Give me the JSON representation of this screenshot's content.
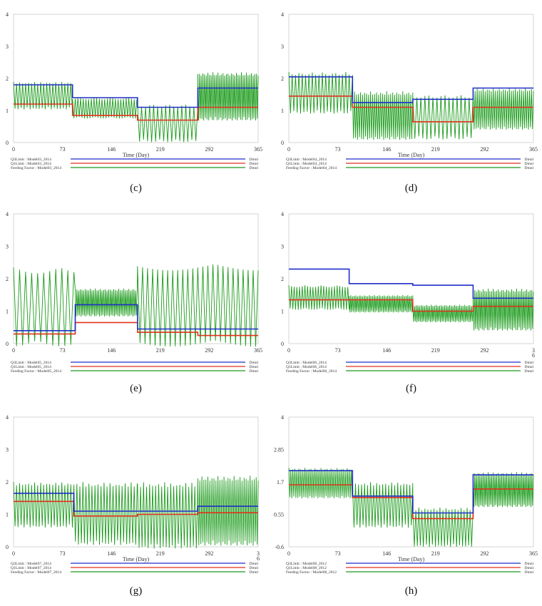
{
  "colors": {
    "blue": "#1f2fc9",
    "red": "#e0321c",
    "green": "#1a9a1a",
    "axis": "#444444"
  },
  "chart_data": [
    {
      "type": "line",
      "label": "(c)",
      "xlabel": "Time (Day)",
      "x_ticks": [
        "0",
        "73",
        "146",
        "219",
        "292",
        "365"
      ],
      "y_ticks": [
        "0",
        "1",
        "2",
        "3",
        "4"
      ],
      "xlim": [
        0,
        365
      ],
      "ylim": [
        0,
        4
      ],
      "series": [
        {
          "name": "Q3Limit : Model03_2014",
          "unit": "Dmnl",
          "color": "blue",
          "steps": [
            [
              0,
              1.8
            ],
            [
              88,
              1.4
            ],
            [
              185,
              1.1
            ],
            [
              275,
              1.7
            ],
            [
              365,
              1.7
            ]
          ]
        },
        {
          "name": "Q1Limit : Model03_2014",
          "unit": "Dmnl",
          "color": "red",
          "steps": [
            [
              0,
              1.2
            ],
            [
              88,
              0.85
            ],
            [
              185,
              0.7
            ],
            [
              275,
              1.1
            ],
            [
              365,
              1.1
            ]
          ]
        },
        {
          "name": "Feeding Factor : Model03_2014",
          "unit": "Dmnl",
          "color": "green",
          "osc": [
            [
              0,
              88,
              1.1,
              1.9,
              4.5
            ],
            [
              88,
              185,
              0.8,
              1.4,
              4
            ],
            [
              185,
              275,
              0.1,
              1.2,
              6
            ],
            [
              275,
              365,
              0.8,
              2.2,
              2.5
            ]
          ]
        }
      ]
    },
    {
      "type": "line",
      "label": "(d)",
      "xlabel": "Time (Day)",
      "x_ticks": [
        "0",
        "73",
        "146",
        "219",
        "292",
        "365"
      ],
      "y_ticks": [
        "0",
        "1",
        "2",
        "3",
        "4"
      ],
      "xlim": [
        0,
        365
      ],
      "ylim": [
        0,
        4
      ],
      "series": [
        {
          "name": "Q3Limit : Model04_2014",
          "unit": "Dmnl",
          "color": "blue",
          "steps": [
            [
              0,
              2.05
            ],
            [
              95,
              1.25
            ],
            [
              185,
              1.35
            ],
            [
              275,
              1.7
            ],
            [
              365,
              1.7
            ]
          ]
        },
        {
          "name": "Q1Limit : Model04_2014",
          "unit": "Dmnl",
          "color": "red",
          "steps": [
            [
              0,
              1.45
            ],
            [
              95,
              1.1
            ],
            [
              185,
              0.65
            ],
            [
              275,
              1.1
            ],
            [
              365,
              1.1
            ]
          ]
        },
        {
          "name": "Feeding Factor : Model04_2014",
          "unit": "Dmnl",
          "color": "green",
          "osc": [
            [
              0,
              95,
              1.0,
              2.2,
              5
            ],
            [
              95,
              185,
              0.2,
              1.6,
              3
            ],
            [
              185,
              275,
              0.2,
              1.5,
              6
            ],
            [
              275,
              365,
              0.5,
              1.7,
              3
            ]
          ]
        }
      ]
    },
    {
      "type": "line",
      "label": "(e)",
      "xlabel": "",
      "x_ticks": [
        "0",
        "73",
        "146",
        "219",
        "292",
        "365"
      ],
      "y_ticks": [
        "0",
        "1",
        "2",
        "3",
        "4"
      ],
      "xlim": [
        0,
        365
      ],
      "ylim": [
        0,
        4
      ],
      "series": [
        {
          "name": "Q3Limit : Model05_2014",
          "unit": "Dmnl",
          "color": "blue",
          "steps": [
            [
              0,
              0.4
            ],
            [
              92,
              1.2
            ],
            [
              185,
              0.45
            ],
            [
              365,
              0.45
            ]
          ]
        },
        {
          "name": "Q1Limit : Model05_2014",
          "unit": "Dmnl",
          "color": "red",
          "steps": [
            [
              0,
              0.3
            ],
            [
              92,
              0.65
            ],
            [
              185,
              0.35
            ],
            [
              275,
              0.25
            ],
            [
              365,
              0.25
            ]
          ]
        },
        {
          "name": "Feeding Factor : Model05_2014",
          "unit": "Dmnl",
          "color": "green",
          "osc": [
            [
              0,
              92,
              0.1,
              2.35,
              9
            ],
            [
              92,
              185,
              0.9,
              1.7,
              2.5
            ],
            [
              185,
              365,
              0.1,
              2.45,
              7.5
            ]
          ]
        }
      ]
    },
    {
      "type": "line",
      "label": "(f)",
      "xlabel": "",
      "x_ticks": [
        "0",
        "73",
        "146",
        "219",
        "292",
        "3\n6"
      ],
      "y_ticks": [
        "0",
        "1",
        "2",
        "3",
        "4"
      ],
      "xlim": [
        0,
        365
      ],
      "ylim": [
        0,
        4
      ],
      "series": [
        {
          "name": "Q3Limit : Model06_2014",
          "unit": "Dmnl",
          "color": "blue",
          "steps": [
            [
              0,
              2.3
            ],
            [
              90,
              1.85
            ],
            [
              185,
              1.8
            ],
            [
              275,
              1.4
            ],
            [
              365,
              1.4
            ]
          ]
        },
        {
          "name": "Q1Limit : Model06_2014",
          "unit": "Dmnl",
          "color": "red",
          "steps": [
            [
              0,
              1.35
            ],
            [
              185,
              1.0
            ],
            [
              275,
              1.15
            ],
            [
              365,
              1.15
            ]
          ]
        },
        {
          "name": "Feeding Factor : Model06_2014",
          "unit": "Dmnl",
          "color": "green",
          "osc": [
            [
              0,
              90,
              1.1,
              1.8,
              4
            ],
            [
              90,
              185,
              1.0,
              1.5,
              2.5
            ],
            [
              185,
              275,
              0.7,
              1.2,
              2.5
            ],
            [
              275,
              365,
              0.5,
              1.7,
              2.5
            ]
          ]
        }
      ]
    },
    {
      "type": "line",
      "label": "(g)",
      "xlabel": "Time (Day)",
      "x_ticks": [
        "0",
        "73",
        "146",
        "219",
        "292",
        "3\n6"
      ],
      "y_ticks": [
        "0",
        "1",
        "2",
        "3",
        "4"
      ],
      "xlim": [
        0,
        365
      ],
      "ylim": [
        0,
        4
      ],
      "series": [
        {
          "name": "Q3Limit : Model07_2014",
          "unit": "Dmnl",
          "color": "blue",
          "steps": [
            [
              0,
              1.65
            ],
            [
              90,
              1.1
            ],
            [
              275,
              1.25
            ],
            [
              365,
              1.25
            ]
          ]
        },
        {
          "name": "Q1Limit : Model07_2014",
          "unit": "Dmnl",
          "color": "red",
          "steps": [
            [
              0,
              1.4
            ],
            [
              90,
              0.95
            ],
            [
              185,
              1.0
            ],
            [
              275,
              1.05
            ],
            [
              365,
              1.05
            ]
          ]
        },
        {
          "name": "Feeding Factor : Model07_2014",
          "unit": "Dmnl",
          "color": "green",
          "osc": [
            [
              0,
              90,
              0.7,
              2.0,
              4.5
            ],
            [
              90,
              185,
              0.2,
              2.0,
              4.5
            ],
            [
              185,
              275,
              0.1,
              2.0,
              4.5
            ],
            [
              275,
              365,
              0.2,
              2.2,
              3
            ]
          ]
        }
      ]
    },
    {
      "type": "line",
      "label": "(h)",
      "xlabel": "Time (Day)",
      "x_ticks": [
        "0",
        "73",
        "146",
        "219",
        "292",
        "365"
      ],
      "y_ticks": [
        "-0.6",
        "0.55",
        "1.7",
        "2.85",
        "4"
      ],
      "xlim": [
        0,
        365
      ],
      "ylim": [
        -0.6,
        4
      ],
      "series": [
        {
          "name": "Q3Limit : Model08_2012",
          "unit": "Dmnl",
          "color": "blue",
          "steps": [
            [
              0,
              2.1
            ],
            [
              95,
              1.2
            ],
            [
              185,
              0.6
            ],
            [
              275,
              1.95
            ],
            [
              365,
              1.95
            ]
          ]
        },
        {
          "name": "Q1Limit : Model08_2012",
          "unit": "Dmnl",
          "color": "red",
          "steps": [
            [
              0,
              1.6
            ],
            [
              95,
              1.15
            ],
            [
              185,
              0.4
            ],
            [
              275,
              1.45
            ],
            [
              365,
              1.45
            ]
          ]
        },
        {
          "name": "Feeding Factor : Model08_2012",
          "unit": "Dmnl",
          "color": "green",
          "osc": [
            [
              0,
              95,
              1.2,
              2.2,
              3
            ],
            [
              95,
              185,
              0.2,
              1.7,
              4.5
            ],
            [
              185,
              275,
              -0.5,
              0.8,
              4.5
            ],
            [
              275,
              365,
              0.9,
              2.05,
              2.5
            ]
          ]
        }
      ]
    }
  ]
}
